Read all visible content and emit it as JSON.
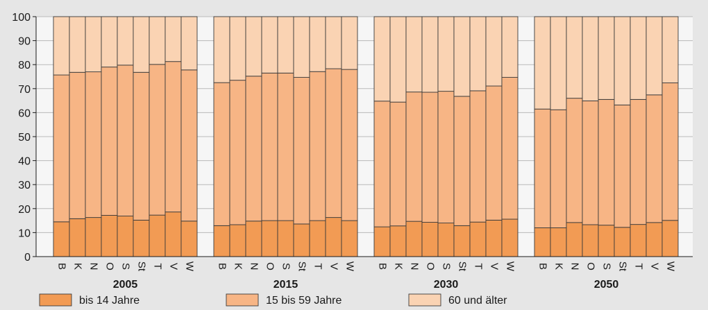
{
  "chart_data": {
    "type": "bar",
    "stacked": true,
    "ylim": [
      0,
      100
    ],
    "yticks": [
      0,
      10,
      20,
      30,
      40,
      50,
      60,
      70,
      80,
      90,
      100
    ],
    "grid": true,
    "legend_position": "bottom",
    "categories": [
      "B",
      "K",
      "N",
      "O",
      "S",
      "St",
      "T",
      "V",
      "W"
    ],
    "groups": [
      {
        "label": "2005",
        "series_values": {
          "bis 14 Jahre": [
            14.5,
            15.8,
            16.3,
            17.2,
            16.9,
            15.2,
            17.3,
            18.6,
            14.8
          ],
          "15 bis 59 Jahre": [
            61.2,
            61.0,
            60.7,
            61.8,
            62.9,
            61.6,
            62.8,
            62.7,
            63.0
          ],
          "60 und älter": [
            24.3,
            23.2,
            23.0,
            21.0,
            20.2,
            23.2,
            19.9,
            18.7,
            22.2
          ]
        }
      },
      {
        "label": "2015",
        "series_values": {
          "bis 14 Jahre": [
            12.9,
            13.3,
            14.8,
            15.0,
            15.0,
            13.6,
            15.0,
            16.3,
            15.0
          ],
          "15 bis 59 Jahre": [
            59.6,
            60.2,
            60.4,
            61.5,
            61.5,
            61.1,
            62.1,
            62.0,
            63.0
          ],
          "60 und älter": [
            27.5,
            26.5,
            24.8,
            23.5,
            23.5,
            25.3,
            22.9,
            21.7,
            22.0
          ]
        }
      },
      {
        "label": "2030",
        "series_values": {
          "bis 14 Jahre": [
            12.4,
            12.8,
            14.7,
            14.3,
            14.0,
            12.9,
            14.4,
            15.2,
            15.6
          ],
          "15 bis 59 Jahre": [
            52.4,
            51.6,
            53.9,
            54.2,
            54.9,
            53.9,
            54.7,
            55.9,
            59.1
          ],
          "60 und älter": [
            35.2,
            35.6,
            31.4,
            31.5,
            31.1,
            33.2,
            30.9,
            28.9,
            25.3
          ]
        }
      },
      {
        "label": "2050",
        "series_values": {
          "bis 14 Jahre": [
            12.0,
            12.0,
            14.2,
            13.3,
            13.1,
            12.2,
            13.4,
            14.2,
            15.1
          ],
          "15 bis 59 Jahre": [
            49.5,
            49.2,
            51.8,
            51.6,
            52.4,
            51.0,
            52.1,
            53.2,
            57.3
          ],
          "60 und älter": [
            38.5,
            38.8,
            34.0,
            35.1,
            34.5,
            36.8,
            34.5,
            32.6,
            27.6
          ]
        }
      }
    ],
    "series": [
      {
        "name": "bis 14 Jahre",
        "color": "#f29b54"
      },
      {
        "name": "15 bis 59 Jahre",
        "color": "#f7b585"
      },
      {
        "name": "60 und älter",
        "color": "#fad3b3"
      }
    ]
  }
}
